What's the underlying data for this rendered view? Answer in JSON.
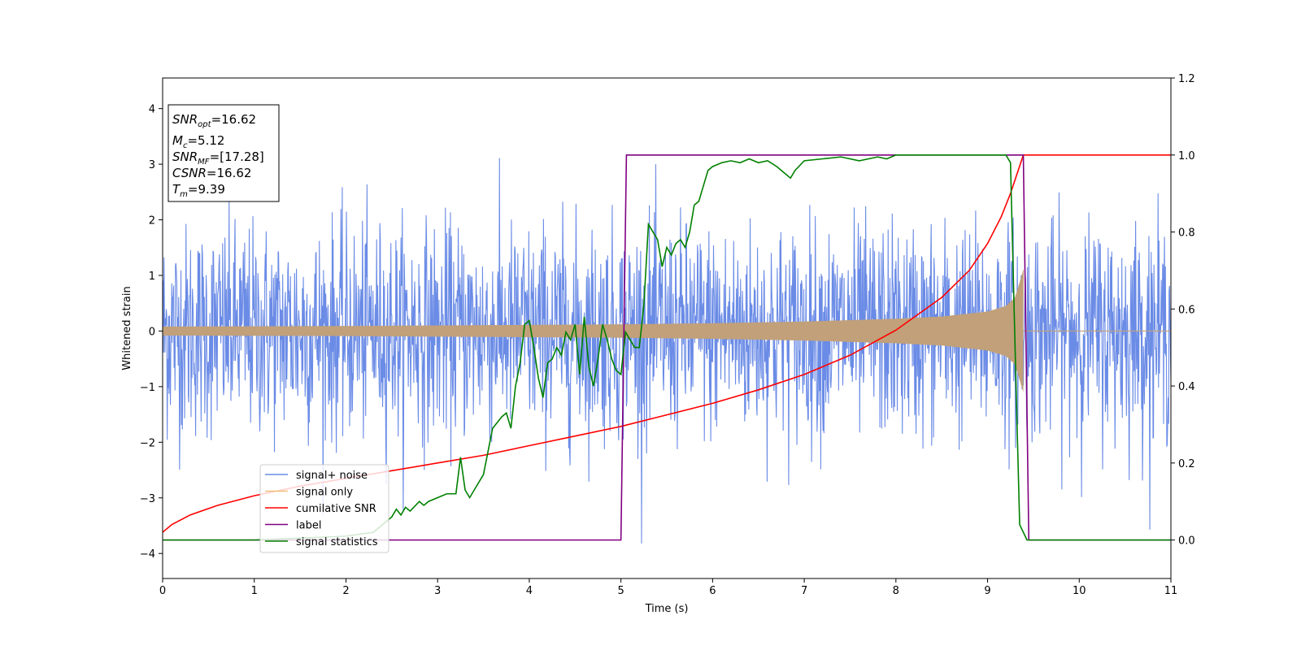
{
  "chart_data": {
    "type": "line",
    "title": "",
    "xlabel": "Time (s)",
    "ylabel": "Whitened strain",
    "y2label": "",
    "xlim": [
      0,
      11
    ],
    "ylim": [
      -4.45,
      4.55
    ],
    "y2lim": [
      -0.1,
      1.2
    ],
    "xticks": [
      "0",
      "1",
      "2",
      "3",
      "4",
      "5",
      "6",
      "7",
      "8",
      "9",
      "10",
      "11"
    ],
    "xtick_values": [
      0,
      1,
      2,
      3,
      4,
      5,
      6,
      7,
      8,
      9,
      10,
      11
    ],
    "yticks": [
      "−4",
      "−3",
      "−2",
      "−1",
      "0",
      "1",
      "2",
      "3",
      "4"
    ],
    "ytick_values": [
      -4,
      -3,
      -2,
      -1,
      0,
      1,
      2,
      3,
      4
    ],
    "y2ticks": [
      "0.0",
      "0.2",
      "0.4",
      "0.6",
      "0.8",
      "1.0",
      "1.2"
    ],
    "y2tick_values": [
      0.0,
      0.2,
      0.4,
      0.6,
      0.8,
      1.0,
      1.2
    ],
    "grid": false,
    "legend_position": "lower-left",
    "info_box": [
      {
        "base": "SNR",
        "sub": "opt",
        "value": "=16.62"
      },
      {
        "base": "M",
        "sub": "c",
        "value": "=5.12"
      },
      {
        "base": "SNR",
        "sub": "MF",
        "value": "=[17.28]"
      },
      {
        "base": "CSNR",
        "sub": "",
        "value": "=16.62"
      },
      {
        "base": "T",
        "sub": "m",
        "value": "=9.39"
      }
    ],
    "series": [
      {
        "name": "signal+ noise",
        "axis": "left",
        "color": "#6a8be6",
        "noise_std": 0.95,
        "x_range": [
          0,
          11
        ]
      },
      {
        "name": "signal only",
        "axis": "left",
        "color": "#f5c07a",
        "fill_color": "#c1a07a",
        "envelope": {
          "t": [
            0,
            1,
            2,
            3,
            4,
            5,
            6,
            7,
            8,
            8.5,
            9,
            9.2,
            9.3,
            9.39
          ],
          "amp": [
            0.08,
            0.085,
            0.09,
            0.1,
            0.11,
            0.12,
            0.14,
            0.17,
            0.22,
            0.26,
            0.35,
            0.45,
            0.6,
            1.1
          ]
        },
        "end_time": 9.39
      },
      {
        "name": "cumilative SNR",
        "axis": "right",
        "color": "#ff0000",
        "x": [
          0,
          0.1,
          0.3,
          0.6,
          1,
          1.5,
          2,
          2.5,
          3,
          3.5,
          4,
          4.5,
          5,
          5.5,
          6,
          6.5,
          7,
          7.5,
          8,
          8.5,
          8.8,
          9,
          9.15,
          9.25,
          9.32,
          9.39,
          11
        ],
        "values": [
          0.02,
          0.04,
          0.065,
          0.09,
          0.115,
          0.14,
          0.16,
          0.18,
          0.2,
          0.22,
          0.245,
          0.27,
          0.295,
          0.325,
          0.355,
          0.39,
          0.43,
          0.48,
          0.545,
          0.63,
          0.7,
          0.77,
          0.84,
          0.9,
          0.95,
          1.0,
          1.0
        ]
      },
      {
        "name": "label",
        "axis": "right",
        "color": "#800080",
        "x": [
          0,
          5.0,
          5.06,
          9.39,
          9.45,
          11
        ],
        "values": [
          0,
          0,
          1,
          1,
          0,
          0
        ]
      },
      {
        "name": "signal statistics",
        "axis": "right",
        "color": "#008000",
        "x": [
          0,
          1.0,
          2.0,
          2.3,
          2.4,
          2.5,
          2.55,
          2.6,
          2.65,
          2.7,
          2.8,
          2.85,
          2.9,
          3.0,
          3.1,
          3.2,
          3.25,
          3.3,
          3.35,
          3.4,
          3.5,
          3.6,
          3.7,
          3.75,
          3.8,
          3.85,
          3.9,
          3.95,
          4.0,
          4.05,
          4.1,
          4.15,
          4.2,
          4.25,
          4.3,
          4.35,
          4.4,
          4.45,
          4.5,
          4.55,
          4.6,
          4.65,
          4.7,
          4.75,
          4.8,
          4.85,
          4.9,
          4.95,
          5.0,
          5.05,
          5.1,
          5.15,
          5.2,
          5.25,
          5.3,
          5.35,
          5.4,
          5.45,
          5.5,
          5.55,
          5.6,
          5.65,
          5.7,
          5.75,
          5.8,
          5.85,
          5.9,
          5.95,
          6.0,
          6.1,
          6.2,
          6.3,
          6.4,
          6.5,
          6.6,
          6.7,
          6.8,
          6.85,
          6.9,
          7.0,
          7.2,
          7.4,
          7.6,
          7.8,
          7.9,
          8.0,
          8.3,
          8.6,
          9.0,
          9.2,
          9.25,
          9.3,
          9.35,
          9.39,
          9.43,
          9.48,
          11
        ],
        "values": [
          0.0,
          0.0,
          0.01,
          0.02,
          0.04,
          0.06,
          0.08,
          0.065,
          0.085,
          0.075,
          0.1,
          0.09,
          0.1,
          0.11,
          0.12,
          0.12,
          0.215,
          0.13,
          0.11,
          0.13,
          0.17,
          0.29,
          0.32,
          0.33,
          0.29,
          0.4,
          0.46,
          0.56,
          0.57,
          0.5,
          0.42,
          0.37,
          0.46,
          0.47,
          0.5,
          0.48,
          0.54,
          0.52,
          0.56,
          0.43,
          0.58,
          0.45,
          0.4,
          0.47,
          0.56,
          0.52,
          0.47,
          0.44,
          0.43,
          0.54,
          0.52,
          0.5,
          0.5,
          0.61,
          0.82,
          0.8,
          0.78,
          0.71,
          0.76,
          0.74,
          0.77,
          0.78,
          0.76,
          0.8,
          0.87,
          0.88,
          0.92,
          0.96,
          0.97,
          0.98,
          0.985,
          0.98,
          0.99,
          0.98,
          0.985,
          0.97,
          0.95,
          0.94,
          0.96,
          0.985,
          0.99,
          0.995,
          0.985,
          0.995,
          0.99,
          1.0,
          1.0,
          1.0,
          1.0,
          1.0,
          0.98,
          0.5,
          0.04,
          0.02,
          0.0,
          0.0,
          0.0
        ]
      }
    ]
  }
}
